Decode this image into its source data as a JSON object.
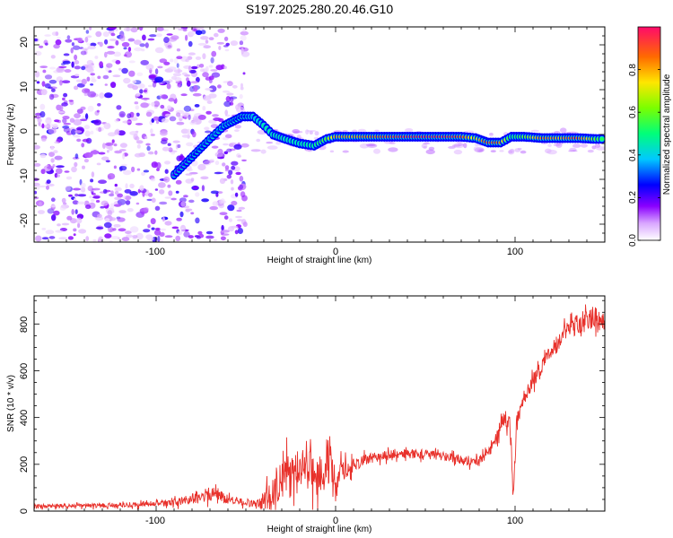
{
  "title": "S197.2025.280.20.46.G10",
  "colors": {
    "line": "#e8312b",
    "axis": "#000000",
    "trace_fill": "#1a22e6"
  },
  "chart_data": [
    {
      "type": "heatmap",
      "xlabel": "Height of straight line (km)",
      "ylabel": "Frequency (Hz)",
      "xlim": [
        -168,
        150
      ],
      "ylim": [
        -24,
        24
      ],
      "x_ticks": [
        -100,
        0,
        100
      ],
      "x_tick_labels": [
        "-100",
        "0",
        "100"
      ],
      "y_ticks": [
        -20,
        -10,
        0,
        10,
        20
      ],
      "y_tick_labels": [
        "-20",
        "-10",
        "0",
        "10",
        "20"
      ],
      "colorbar": {
        "label": "Normalized spectral amplitude",
        "range": [
          0,
          1
        ],
        "ticks": [
          0.0,
          0.2,
          0.4,
          0.6,
          0.8
        ],
        "tick_labels": [
          "0.0",
          "0.2",
          "0.4",
          "0.6",
          "0.8"
        ]
      },
      "noise_region_x": [
        -168,
        -50
      ],
      "ridge": [
        {
          "x": -90,
          "y": -9,
          "a": 0.2
        },
        {
          "x": -80,
          "y": -5,
          "a": 0.25
        },
        {
          "x": -70,
          "y": -1,
          "a": 0.3
        },
        {
          "x": -62,
          "y": 2,
          "a": 0.3
        },
        {
          "x": -52,
          "y": 4,
          "a": 0.25
        },
        {
          "x": -46,
          "y": 4,
          "a": 0.35
        },
        {
          "x": -40,
          "y": 2,
          "a": 0.45
        },
        {
          "x": -35,
          "y": 0,
          "a": 0.45
        },
        {
          "x": -28,
          "y": -1,
          "a": 0.45
        },
        {
          "x": -20,
          "y": -2,
          "a": 0.45
        },
        {
          "x": -12,
          "y": -2.5,
          "a": 0.5
        },
        {
          "x": -5,
          "y": -1,
          "a": 0.6
        },
        {
          "x": 0,
          "y": -0.5,
          "a": 0.8
        },
        {
          "x": 10,
          "y": -0.5,
          "a": 0.8
        },
        {
          "x": 20,
          "y": -0.5,
          "a": 0.85
        },
        {
          "x": 30,
          "y": -0.5,
          "a": 0.9
        },
        {
          "x": 40,
          "y": -0.5,
          "a": 0.95
        },
        {
          "x": 50,
          "y": -0.5,
          "a": 0.95
        },
        {
          "x": 60,
          "y": -0.5,
          "a": 0.95
        },
        {
          "x": 70,
          "y": -0.5,
          "a": 0.9
        },
        {
          "x": 78,
          "y": -0.8,
          "a": 0.7
        },
        {
          "x": 85,
          "y": -1.8,
          "a": 0.9
        },
        {
          "x": 92,
          "y": -1.8,
          "a": 0.85
        },
        {
          "x": 98,
          "y": -0.5,
          "a": 0.5
        },
        {
          "x": 105,
          "y": -0.5,
          "a": 0.6
        },
        {
          "x": 115,
          "y": -0.8,
          "a": 0.85
        },
        {
          "x": 125,
          "y": -0.8,
          "a": 0.8
        },
        {
          "x": 135,
          "y": -0.8,
          "a": 0.9
        },
        {
          "x": 145,
          "y": -1,
          "a": 0.6
        },
        {
          "x": 150,
          "y": -1,
          "a": 0.5
        }
      ]
    },
    {
      "type": "line",
      "xlabel": "Height of straight line (km)",
      "ylabel": "SNR (10 * v/v)",
      "xlim": [
        -168,
        150
      ],
      "ylim": [
        0,
        920
      ],
      "x_ticks": [
        -100,
        0,
        100
      ],
      "x_tick_labels": [
        "-100",
        "0",
        "100"
      ],
      "y_ticks": [
        0,
        200,
        400,
        600,
        800
      ],
      "y_tick_labels": [
        "0",
        "200",
        "400",
        "600",
        "800"
      ],
      "series": [
        {
          "name": "SNR",
          "x": [
            -168,
            -140,
            -110,
            -90,
            -75,
            -68,
            -60,
            -50,
            -42,
            -38,
            -34,
            -30,
            -26,
            -22,
            -18,
            -14,
            -10,
            -6,
            -3,
            0,
            3,
            8,
            15,
            25,
            35,
            45,
            55,
            65,
            72,
            78,
            82,
            86,
            90,
            94,
            97,
            99,
            101,
            104,
            110,
            118,
            126,
            132,
            138,
            144,
            150
          ],
          "y": [
            20,
            22,
            28,
            35,
            60,
            80,
            50,
            35,
            30,
            60,
            110,
            140,
            160,
            180,
            200,
            170,
            150,
            200,
            210,
            70,
            170,
            190,
            215,
            235,
            245,
            245,
            240,
            230,
            215,
            210,
            230,
            260,
            320,
            400,
            400,
            80,
            380,
            470,
            560,
            660,
            740,
            790,
            820,
            830,
            810
          ],
          "noise": [
            12,
            12,
            14,
            18,
            35,
            40,
            25,
            18,
            30,
            80,
            100,
            110,
            100,
            100,
            100,
            110,
            120,
            130,
            150,
            80,
            60,
            40,
            30,
            25,
            25,
            25,
            25,
            25,
            25,
            25,
            25,
            30,
            35,
            40,
            60,
            30,
            60,
            40,
            40,
            40,
            50,
            60,
            60,
            60,
            60
          ]
        }
      ]
    }
  ]
}
